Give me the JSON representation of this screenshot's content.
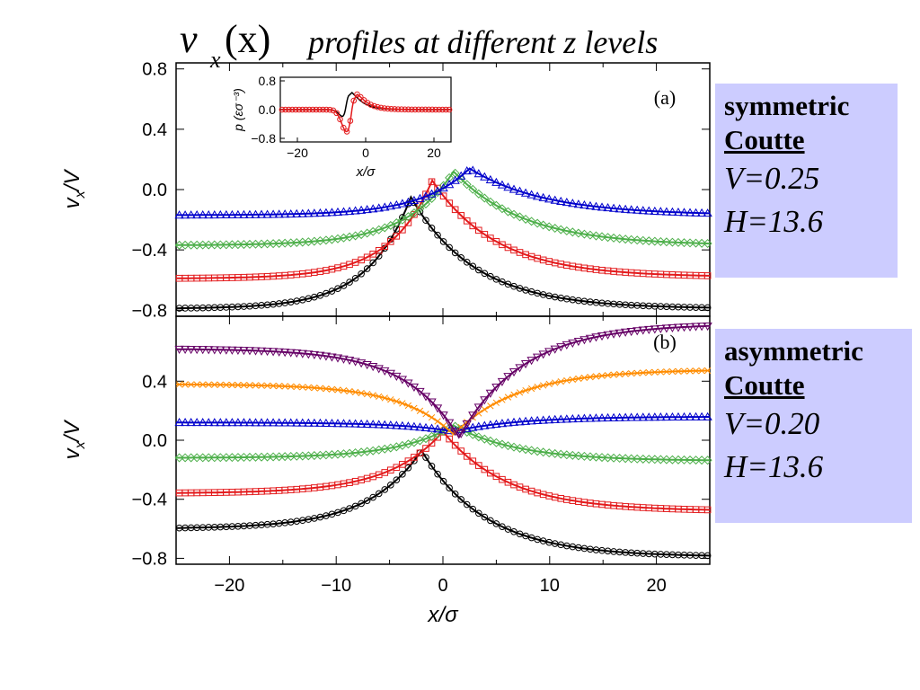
{
  "title": {
    "var": "v",
    "sub": "x",
    "arg": "(x)",
    "rest": "profiles at different z levels"
  },
  "boxes": [
    {
      "line1": "symmetric",
      "line2": "Coutte",
      "line3": "V=0.25",
      "line4": "H=13.6"
    },
    {
      "line1": "asymmetric",
      "line2": "Coutte",
      "line3": "V=0.20",
      "line4": "H=13.6"
    }
  ],
  "chart_data": {
    "type": "scatter",
    "x_label": "x/σ",
    "x_range": [
      -25,
      25
    ],
    "x_ticks": [
      -20,
      -10,
      0,
      10,
      20
    ],
    "panels": [
      {
        "label": "(a)",
        "y_label": "v_x/V",
        "y_range": [
          -0.84,
          0.84
        ],
        "y_ticks": [
          0.8,
          0.4,
          0.0,
          -0.4,
          -0.8
        ],
        "series": [
          {
            "color": "#000000",
            "marker": "circle",
            "left": -0.79,
            "right": -0.79,
            "peak": -0.05,
            "peak_x": -3,
            "w_left": 4,
            "w_right": 6
          },
          {
            "color": "#e31a1c",
            "marker": "square",
            "left": -0.59,
            "right": -0.58,
            "peak": 0.06,
            "peak_x": -1,
            "w_left": 4,
            "w_right": 6
          },
          {
            "color": "#4daf4a",
            "marker": "diamond",
            "left": -0.37,
            "right": -0.37,
            "peak": 0.12,
            "peak_x": 1,
            "w_left": 4.5,
            "w_right": 6.5
          },
          {
            "color": "#0000cc",
            "marker": "triangle",
            "left": -0.17,
            "right": -0.17,
            "peak": 0.14,
            "peak_x": 2.5,
            "w_left": 4.5,
            "w_right": 7
          }
        ],
        "inset": {
          "x_label": "x/σ",
          "y_label": "p (εσ⁻³)",
          "x_range": [
            -25,
            25
          ],
          "y_range": [
            -0.9,
            0.9
          ],
          "x_ticks": [
            -20,
            0,
            20
          ],
          "y_ticks": [
            0.8,
            0.0,
            -0.8
          ],
          "series": [
            {
              "color": "#000000",
              "marker": "line",
              "neg_x": -6,
              "neg_amp": -0.24,
              "pos_x": -4,
              "pos_amp": 0.58
            },
            {
              "color": "#e31a1c",
              "marker": "circle",
              "neg_x": -5.5,
              "neg_amp": -0.62,
              "pos_x": -2.5,
              "pos_amp": 0.52
            }
          ]
        }
      },
      {
        "label": "(b)",
        "y_label": "v_x/V",
        "y_range": [
          -0.84,
          0.84
        ],
        "y_ticks": [
          0.4,
          0.0,
          -0.4,
          -0.8
        ],
        "series": [
          {
            "color": "#000000",
            "marker": "circle",
            "left": -0.6,
            "right": -0.79,
            "peak": -0.07,
            "peak_x": -2,
            "w_left": 5,
            "w_right": 6
          },
          {
            "color": "#e31a1c",
            "marker": "square",
            "left": -0.36,
            "right": -0.48,
            "peak": 0.06,
            "peak_x": 0,
            "w_left": 5,
            "w_right": 6
          },
          {
            "color": "#4daf4a",
            "marker": "diamond",
            "left": -0.12,
            "right": -0.14,
            "peak": 0.1,
            "peak_x": 1,
            "w_left": 5,
            "w_right": 6
          },
          {
            "color": "#0000cc",
            "marker": "triangle",
            "left": 0.12,
            "right": 0.16,
            "peak": 0.06,
            "peak_x": 1,
            "w_left": 5,
            "w_right": 6
          },
          {
            "color": "#ff8c00",
            "marker": "cross",
            "left": 0.38,
            "right": 0.48,
            "peak": 0.04,
            "peak_x": 1,
            "w_left": 5,
            "w_right": 6
          },
          {
            "color": "#660066",
            "marker": "triangle-down",
            "left": 0.62,
            "right": 0.79,
            "peak": 0.02,
            "peak_x": 1.5,
            "w_left": 5,
            "w_right": 6
          }
        ]
      }
    ]
  }
}
